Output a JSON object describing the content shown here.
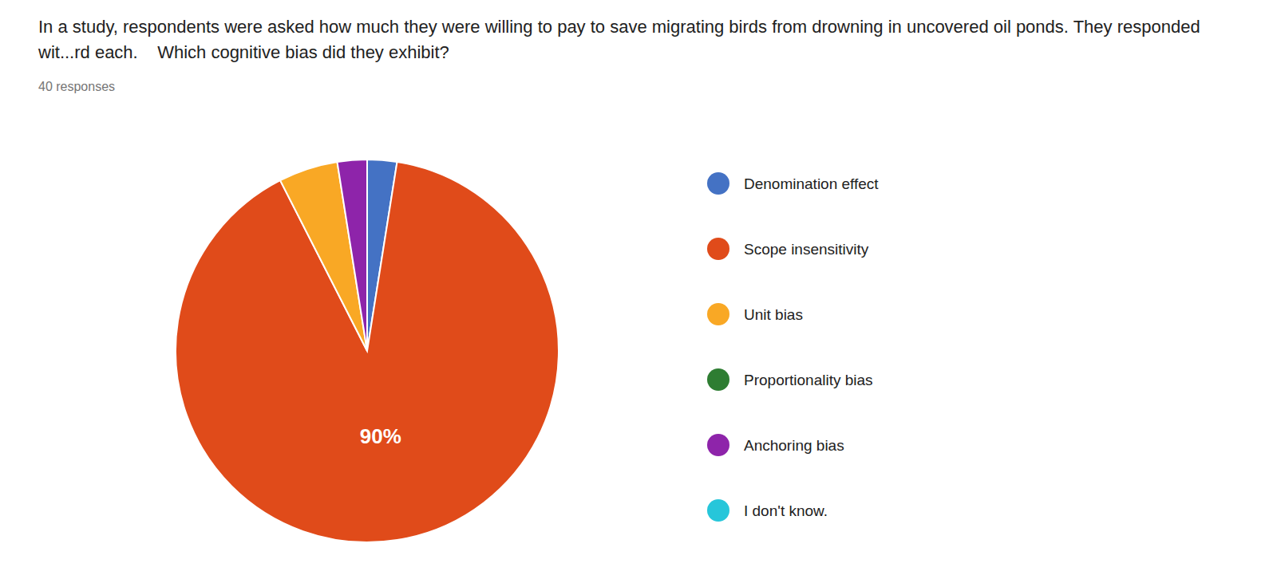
{
  "chart_data": {
    "type": "pie",
    "title": "In a study, respondents were asked how much they were willing to pay to save migrating birds from drowning in uncovered oil ponds. They responded wit...rd each.    Which cognitive bias did they exhibit?",
    "subtitle": "40 responses",
    "categories": [
      "Denomination effect",
      "Scope insensitivity",
      "Unit bias",
      "Proportionality bias",
      "Anchoring bias",
      "I don't know."
    ],
    "values": [
      2.5,
      90,
      5,
      0,
      2.5,
      0
    ],
    "value_labels": [
      null,
      "90%",
      null,
      null,
      null,
      null
    ],
    "colors": [
      "#4472C4",
      "#E04B1A",
      "#F9A825",
      "#2E7D32",
      "#8E24AA",
      "#26C6DA"
    ],
    "legend": "right"
  }
}
